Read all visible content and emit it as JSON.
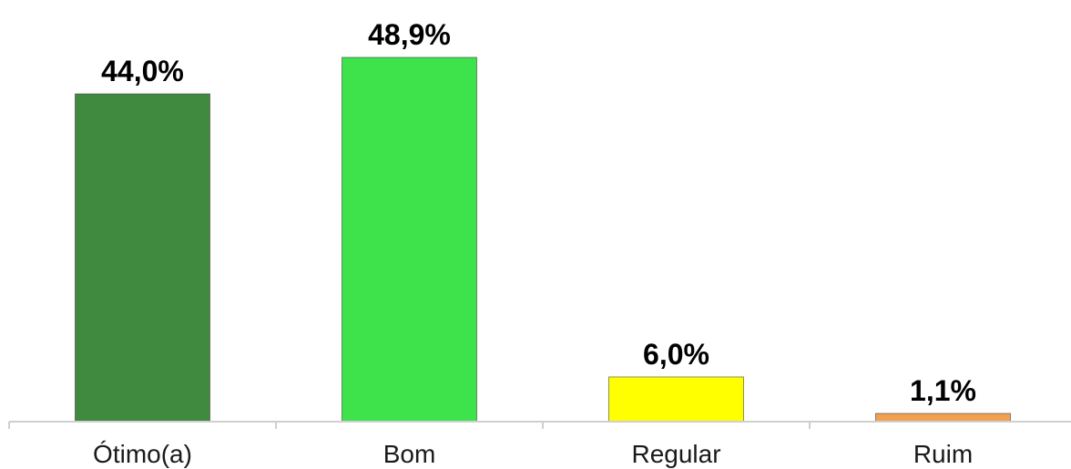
{
  "chart_data": {
    "type": "bar",
    "categories": [
      "Ótimo(a)",
      "Bom",
      "Regular",
      "Ruim"
    ],
    "values": [
      44.0,
      48.9,
      6.0,
      1.1
    ],
    "value_labels": [
      "44,0%",
      "48,9%",
      "6,0%",
      "1,1%"
    ],
    "colors": [
      "#3f8a3f",
      "#3ee24a",
      "#ffff00",
      "#f0a050"
    ],
    "title": "",
    "xlabel": "",
    "ylabel": "",
    "ylim": [
      0,
      48.9
    ],
    "grid": false,
    "legend": "none"
  }
}
